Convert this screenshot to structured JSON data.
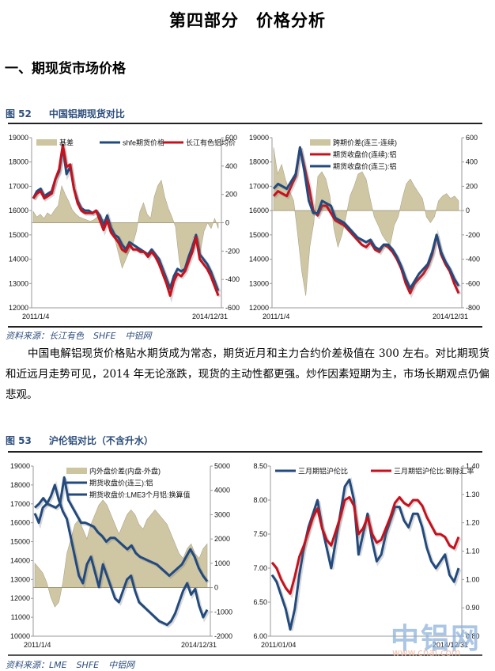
{
  "page_title": "第四部分　价格分析",
  "section_title": "一、期现货市场价格",
  "figure52": {
    "num": "图 52",
    "title": "中国铝期现货对比",
    "source": [
      "资料来源：长江有色",
      "SHFE",
      "中铝网"
    ]
  },
  "paragraph": "中国电解铝现货价格贴水期货成为常态，期货近月和主力合约价差极值在 300 左右。对比期现货和近远月走势可见，2014 年无论涨跌，现货的主动性都更强。炒作因素短期为主，市场长期观点仍偏悲观。",
  "figure53": {
    "num": "图 53",
    "title": "沪伦铝对比（不含升水）",
    "source": [
      "资料来源：LME",
      "SHFE",
      "中铝网"
    ]
  },
  "watermark": {
    "cn": "中铝网",
    "url": "www.cnal.com"
  },
  "colors": {
    "blue": "#234a7e",
    "red": "#c8101c",
    "area": "#cdc5a0",
    "area_edge": "#a8a080",
    "title_blue": "#2d4e7c"
  },
  "chart_data": [
    {
      "id": "fig52-left",
      "type": "line",
      "title": "",
      "xlabel": "",
      "ylabel": "",
      "x_ticks": [
        "2011/1/4",
        "2014/12/31"
      ],
      "ylim": [
        12000,
        19000
      ],
      "y_ticks": [
        12000,
        13000,
        14000,
        15000,
        16000,
        17000,
        18000,
        19000
      ],
      "y2lim": [
        -600,
        600
      ],
      "y2_ticks": [
        -600,
        -400,
        -200,
        0,
        200,
        400,
        600
      ],
      "legend": [
        "基差",
        "shfe期货价格",
        "长江有色铝均价"
      ],
      "series": [
        {
          "name": "基差",
          "type": "area",
          "axis": "right",
          "values": [
            80,
            40,
            60,
            30,
            70,
            50,
            90,
            120,
            260,
            200,
            150,
            90,
            60,
            40,
            30,
            20,
            10,
            20,
            40,
            30,
            20,
            10,
            -40,
            -120,
            -220,
            -320,
            -260,
            -200,
            -150,
            -60,
            80,
            140,
            60,
            30,
            180,
            260,
            300,
            180,
            100,
            40,
            -30,
            -260,
            -380,
            -300,
            -220,
            -100,
            -150,
            -200,
            -60,
            0,
            -40,
            30,
            -40
          ]
        },
        {
          "name": "shfe期货价格",
          "type": "line",
          "axis": "left",
          "values": [
            16500,
            16800,
            16900,
            16600,
            16700,
            16800,
            17300,
            17600,
            18600,
            17500,
            17800,
            16900,
            16400,
            16100,
            16000,
            16000,
            15900,
            16000,
            15800,
            15400,
            15800,
            15300,
            15000,
            14900,
            14600,
            14400,
            14700,
            14600,
            14500,
            14400,
            14300,
            14200,
            14400,
            14200,
            14000,
            13600,
            13200,
            12800,
            13300,
            13600,
            13500,
            13600,
            14100,
            14500,
            15000,
            14200,
            14000,
            13800,
            13500,
            13100,
            12700
          ]
        },
        {
          "name": "长江有色铝均价",
          "type": "line",
          "axis": "left",
          "values": [
            16500,
            16700,
            16800,
            16500,
            16600,
            16700,
            17300,
            17700,
            18700,
            17800,
            17900,
            16900,
            16300,
            16000,
            15900,
            15900,
            15900,
            16000,
            15600,
            15200,
            15600,
            15100,
            14900,
            14700,
            14400,
            14300,
            14600,
            14400,
            14400,
            14300,
            14300,
            14100,
            14300,
            14100,
            13800,
            13400,
            13000,
            12500,
            13100,
            13400,
            13300,
            13500,
            13900,
            14300,
            14900,
            14000,
            13800,
            13600,
            13300,
            12900,
            12500
          ]
        }
      ]
    },
    {
      "id": "fig52-right",
      "type": "line",
      "x_ticks": [
        "2011/1/4",
        "2014/12/31"
      ],
      "ylim": [
        12000,
        19000
      ],
      "y_ticks": [
        12000,
        13000,
        14000,
        15000,
        16000,
        17000,
        18000,
        19000
      ],
      "y2lim": [
        -800,
        600
      ],
      "y2_ticks": [
        -800,
        -600,
        -400,
        -200,
        0,
        200,
        400,
        600
      ],
      "legend": [
        "跨期价差(连三-连续)",
        "期货收盘价(连续):铝",
        "期货收盘价(连三):铝"
      ],
      "series": [
        {
          "name": "跨期价差(连三-连续)",
          "type": "area",
          "axis": "right",
          "values": [
            520,
            300,
            380,
            250,
            160,
            80,
            -200,
            -500,
            -700,
            -300,
            -100,
            280,
            320,
            260,
            120,
            -150,
            -300,
            -200,
            -50,
            120,
            200,
            300,
            320,
            260,
            100,
            -50,
            -120,
            -200,
            -250,
            -280,
            -120,
            -50,
            100,
            220,
            260,
            200,
            150,
            100,
            -50,
            -100,
            -50,
            80,
            120,
            140,
            100,
            120,
            80
          ]
        },
        {
          "name": "期货收盘价(连续):铝",
          "type": "line",
          "axis": "right_hidden",
          "values": [
            16600,
            16800,
            16700,
            16600,
            17000,
            17400,
            18600,
            17800,
            17000,
            16000,
            15800,
            16200,
            16200,
            15900,
            15600,
            15500,
            15400,
            15200,
            15000,
            14800,
            14600,
            14500,
            14700,
            14400,
            14300,
            14600,
            14500,
            14300,
            14000,
            13600,
            13000,
            12600,
            13000,
            13200,
            13400,
            13700,
            14200,
            15000,
            14200,
            13800,
            13500,
            13000,
            12600
          ]
        },
        {
          "name": "期货收盘价(连三):铝",
          "type": "line",
          "axis": "left",
          "values": [
            16900,
            17100,
            17000,
            16900,
            17200,
            17500,
            18600,
            17600,
            16400,
            15900,
            15900,
            16400,
            16300,
            16200,
            15700,
            15600,
            15500,
            15300,
            15100,
            14900,
            14800,
            14700,
            14800,
            14500,
            14400,
            14600,
            14600,
            14400,
            14100,
            13700,
            13200,
            12800,
            13100,
            13400,
            13600,
            13800,
            14300,
            15000,
            14300,
            13900,
            13600,
            13200,
            12900
          ]
        }
      ]
    },
    {
      "id": "fig53-left",
      "type": "line",
      "x_ticks": [
        "2011/1/4",
        "2014/12/31"
      ],
      "ylim": [
        10000,
        19000
      ],
      "y_ticks": [
        10000,
        11000,
        12000,
        13000,
        14000,
        15000,
        16000,
        17000,
        18000,
        19000
      ],
      "y2lim": [
        -2000,
        5000
      ],
      "y2_ticks": [
        -2000,
        -1000,
        0,
        1000,
        2000,
        3000,
        4000,
        5000
      ],
      "legend": [
        "内外盘价差(内盘-外盘)",
        "期货收盘价(连三):铝",
        "期货收盘价:LME3个月铝:换算值"
      ],
      "series": [
        {
          "name": "内外盘价差(内盘-外盘)",
          "type": "area",
          "axis": "right",
          "values": [
            1000,
            800,
            600,
            200,
            -400,
            -800,
            -600,
            200,
            1400,
            2000,
            2600,
            2800,
            2400,
            2000,
            2600,
            3000,
            3400,
            3600,
            3400,
            3000,
            2600,
            2200,
            2600,
            3000,
            3200,
            3000,
            2600,
            2400,
            2800,
            3000,
            3200,
            3000,
            2800,
            2600,
            2200,
            1800,
            1400,
            1200,
            1600,
            1800,
            1400,
            1200,
            1600,
            1800
          ]
        },
        {
          "name": "期货收盘价(连三):铝",
          "type": "line",
          "axis": "left",
          "values": [
            16800,
            17000,
            17300,
            17000,
            16900,
            16800,
            17000,
            18400,
            17200,
            16800,
            16400,
            16000,
            16000,
            15900,
            15800,
            15500,
            15300,
            15000,
            15200,
            15200,
            15000,
            14800,
            14600,
            14800,
            14400,
            14200,
            14100,
            14000,
            13900,
            13800,
            13600,
            13400,
            13200,
            13400,
            13600,
            13800,
            14200,
            14600,
            14200,
            13600,
            13200,
            12900
          ]
        },
        {
          "name": "期货收盘价:LME3个月铝:换算值",
          "type": "line",
          "axis": "left",
          "values": [
            16500,
            16000,
            16800,
            17000,
            17400,
            18000,
            17200,
            16600,
            16200,
            15200,
            14200,
            13200,
            12800,
            13800,
            14200,
            13400,
            12600,
            13800,
            13200,
            12600,
            12000,
            11800,
            12400,
            13000,
            13200,
            12400,
            11800,
            11600,
            11400,
            11200,
            11000,
            10800,
            10700,
            10600,
            10800,
            11200,
            11800,
            12400,
            12800,
            12200,
            12500,
            11600,
            11000,
            11400
          ]
        }
      ]
    },
    {
      "id": "fig53-right",
      "type": "line",
      "x_ticks": [
        "2011/01/04",
        "2014/12/31"
      ],
      "ylim": [
        6.0,
        8.5
      ],
      "y_ticks": [
        6.0,
        6.5,
        7.0,
        7.5,
        8.0,
        8.5
      ],
      "y2lim": [
        0.8,
        1.4
      ],
      "y2_ticks": [
        0.8,
        0.9,
        1.0,
        1.1,
        1.2,
        1.3,
        1.4
      ],
      "legend": [
        "三月期铝沪伦比",
        "三月期铝沪伦比:剔除汇率"
      ],
      "series": [
        {
          "name": "三月期铝沪伦比",
          "type": "line",
          "axis": "left",
          "values": [
            6.9,
            6.8,
            6.6,
            6.4,
            6.1,
            6.4,
            6.9,
            7.3,
            7.6,
            7.8,
            8.0,
            7.6,
            7.3,
            7.0,
            7.4,
            7.8,
            8.2,
            8.3,
            8.0,
            7.2,
            7.5,
            7.8,
            7.4,
            7.1,
            7.2,
            7.5,
            7.7,
            7.9,
            7.9,
            7.7,
            7.6,
            7.8,
            7.8,
            7.6,
            7.3,
            7.1,
            7.0,
            7.1,
            7.2,
            6.9,
            6.8,
            7.0
          ]
        },
        {
          "name": "三月期铝沪伦比:剔除汇率",
          "type": "line",
          "axis": "right",
          "values": [
            1.06,
            1.04,
            1.0,
            0.97,
            0.95,
            1.01,
            1.08,
            1.12,
            1.17,
            1.22,
            1.25,
            1.18,
            1.14,
            1.12,
            1.17,
            1.22,
            1.28,
            1.29,
            1.26,
            1.16,
            1.18,
            1.22,
            1.16,
            1.13,
            1.14,
            1.18,
            1.22,
            1.27,
            1.29,
            1.27,
            1.26,
            1.28,
            1.28,
            1.26,
            1.22,
            1.19,
            1.16,
            1.16,
            1.15,
            1.12,
            1.11,
            1.15
          ]
        }
      ]
    }
  ]
}
